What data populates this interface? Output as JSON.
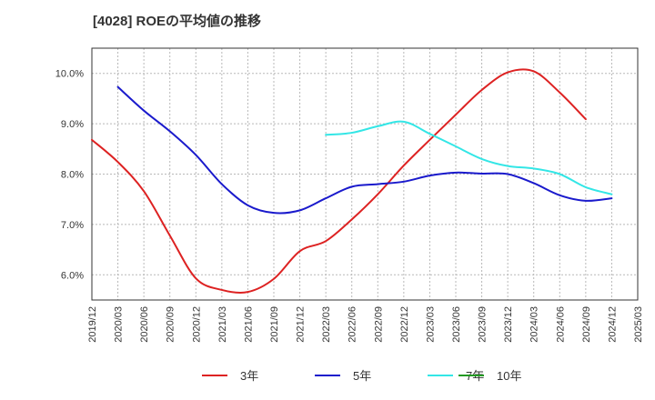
{
  "chart_data": {
    "type": "line",
    "title": "[4028]  ROEの平均値の推移",
    "xlabel": "",
    "ylabel": "",
    "ylim": [
      5.5,
      10.5
    ],
    "y_ticks": [
      6.0,
      7.0,
      8.0,
      9.0,
      10.0
    ],
    "y_tick_labels": [
      "6.0%",
      "7.0%",
      "8.0%",
      "9.0%",
      "10.0%"
    ],
    "x_tick_labels": [
      "2019/12",
      "2020/03",
      "2020/06",
      "2020/09",
      "2020/12",
      "2021/03",
      "2021/06",
      "2021/09",
      "2021/12",
      "2022/03",
      "2022/06",
      "2022/09",
      "2022/12",
      "2023/03",
      "2023/06",
      "2023/09",
      "2023/12",
      "2024/03",
      "2024/06",
      "2024/09",
      "2024/12",
      "2025/03"
    ],
    "grid": true,
    "legend_position": "bottom",
    "series": [
      {
        "name": "3年",
        "color": "#dd2222",
        "start_index": 0,
        "values": [
          8.68,
          8.24,
          7.66,
          6.78,
          5.93,
          5.7,
          5.66,
          5.92,
          6.47,
          6.67,
          7.1,
          7.6,
          8.17,
          8.68,
          9.18,
          9.67,
          10.02,
          10.04,
          9.62,
          9.09
        ]
      },
      {
        "name": "5年",
        "color": "#1a1acc",
        "start_index": 1,
        "values": [
          9.73,
          9.26,
          8.85,
          8.38,
          7.8,
          7.38,
          7.23,
          7.28,
          7.52,
          7.75,
          7.8,
          7.85,
          7.97,
          8.03,
          8.01,
          8.0,
          7.82,
          7.58,
          7.47,
          7.52
        ]
      },
      {
        "name": "7年",
        "color": "#33e6e6",
        "start_index": 9,
        "values": [
          8.78,
          8.82,
          8.95,
          9.04,
          8.8,
          8.55,
          8.3,
          8.16,
          8.11,
          8.0,
          7.74,
          7.6
        ]
      },
      {
        "name": "10年",
        "color": "#229922",
        "start_index": 0,
        "values": []
      }
    ]
  }
}
